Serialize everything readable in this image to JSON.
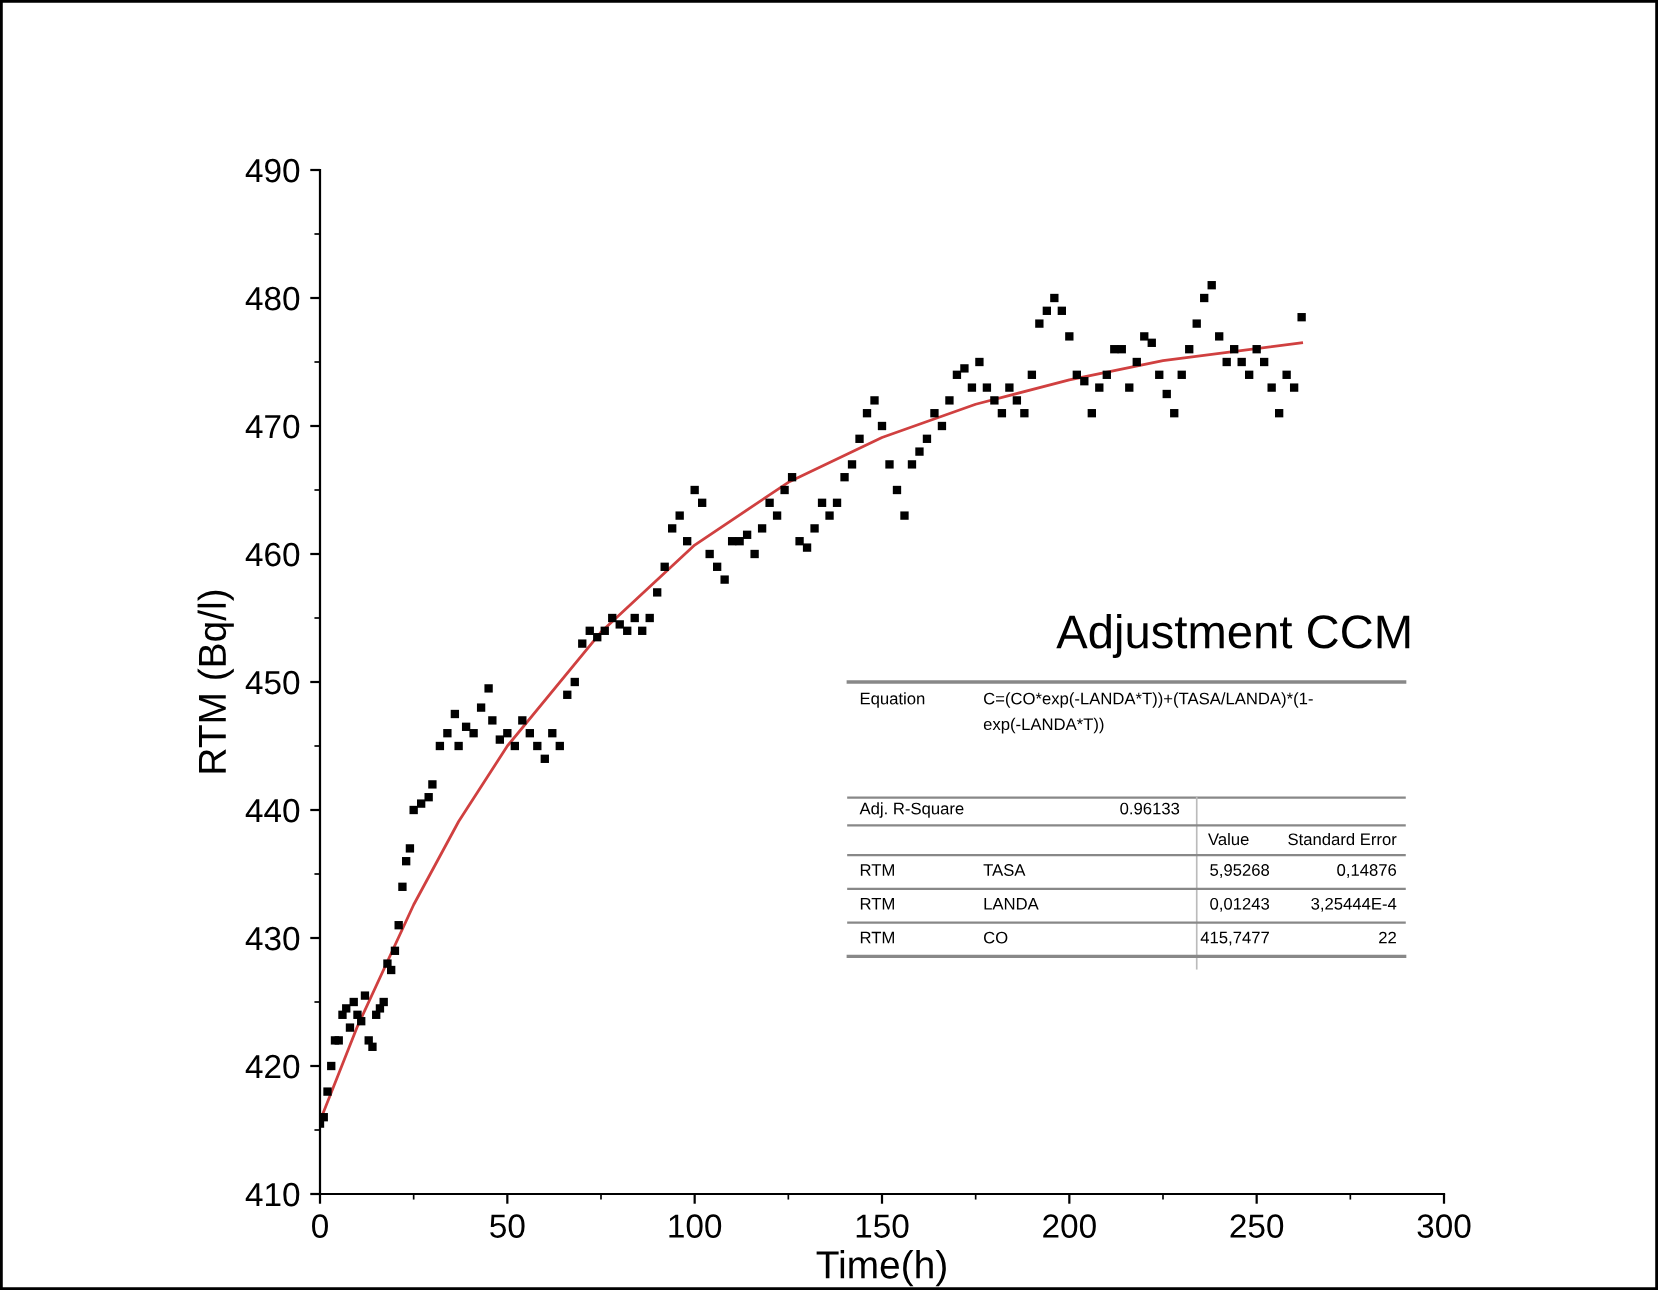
{
  "chart_data": {
    "type": "scatter",
    "xlabel": "Time(h)",
    "ylabel": "RTM (Bq/l)",
    "xlim": [
      0,
      300
    ],
    "ylim": [
      410,
      490
    ],
    "xticks": [
      0,
      50,
      100,
      150,
      200,
      250,
      300
    ],
    "yticks": [
      410,
      420,
      430,
      440,
      450,
      460,
      470,
      480,
      490
    ],
    "grid": false,
    "legend": false,
    "marker": "square",
    "series": [
      {
        "color": "#000000",
        "x": [
          0,
          1,
          2,
          3,
          4,
          5,
          6,
          7,
          8,
          9,
          10,
          11,
          12,
          13,
          14,
          15,
          16,
          17,
          18,
          19,
          20,
          21,
          22,
          23,
          24,
          25,
          27,
          29,
          30,
          32,
          34,
          36,
          37,
          39,
          41,
          43,
          45,
          46,
          48,
          50,
          52,
          54,
          56,
          58,
          60,
          62,
          64,
          66,
          68,
          70,
          72,
          74,
          76,
          78,
          80,
          82,
          84,
          86,
          88,
          90,
          92,
          94,
          96,
          98,
          100,
          102,
          104,
          106,
          108,
          110,
          112,
          114,
          116,
          118,
          120,
          122,
          124,
          126,
          128,
          130,
          132,
          134,
          136,
          138,
          140,
          142,
          144,
          146,
          148,
          150,
          152,
          154,
          156,
          158,
          160,
          162,
          164,
          166,
          168,
          170,
          172,
          174,
          176,
          178,
          180,
          182,
          184,
          186,
          188,
          190,
          192,
          194,
          196,
          198,
          200,
          202,
          204,
          206,
          208,
          210,
          212,
          214,
          216,
          218,
          220,
          222,
          224,
          226,
          228,
          230,
          232,
          234,
          236,
          238,
          240,
          242,
          244,
          246,
          248,
          250,
          252,
          254,
          256,
          258,
          260,
          262
        ],
        "values": [
          415.5,
          416,
          418,
          420,
          422,
          422,
          424,
          424.5,
          423,
          425,
          424,
          423.5,
          425.5,
          422,
          421.5,
          424,
          424.5,
          425,
          428,
          427.5,
          429,
          431,
          434,
          436,
          437,
          440,
          440.5,
          441,
          442,
          445,
          446,
          447.5,
          445,
          446.5,
          446,
          448,
          449.5,
          447,
          445.5,
          446,
          445,
          447,
          446,
          445,
          444,
          446,
          445,
          449,
          450,
          453,
          454,
          453.5,
          454,
          455,
          454.5,
          454,
          455,
          454,
          455,
          457,
          459,
          462,
          463,
          461,
          465,
          464,
          460,
          459,
          458,
          461,
          461,
          461.5,
          460,
          462,
          464,
          463,
          465,
          466,
          461,
          460.5,
          462,
          464,
          463,
          464,
          466,
          467,
          469,
          471,
          472,
          470,
          467,
          465,
          463,
          467,
          468,
          469,
          471,
          470,
          472,
          474,
          474.5,
          473,
          475,
          473,
          472,
          471,
          473,
          472,
          471,
          474,
          478,
          479,
          480,
          479,
          477,
          474,
          473.5,
          471,
          473,
          474,
          476,
          476,
          473,
          475,
          477,
          476.5,
          474,
          472.5,
          471,
          474,
          476,
          478,
          480,
          481,
          477,
          475,
          476,
          475,
          474,
          476,
          475,
          473,
          471,
          474,
          473,
          478.5
        ]
      },
      {
        "type": "line",
        "color": "#d04040",
        "marker": "none",
        "line_style": "solid",
        "x": [
          0,
          10,
          25,
          37,
          50,
          75,
          100,
          125,
          150,
          175,
          200,
          225,
          262
        ],
        "values": [
          415.7,
          423.1,
          432.6,
          439.1,
          445.0,
          453.9,
          460.7,
          465.6,
          469.1,
          471.7,
          473.6,
          475.1,
          476.5
        ]
      }
    ],
    "annotations": [
      "Adjustment CCM",
      "Equation",
      "C=(CO*exp(-LANDA*T))+(TASA/LANDA)*(1-",
      "exp(-LANDA*T))",
      "Adj. R-Square",
      "0.96133",
      "Value",
      "Standard Error",
      "RTM",
      "TASA",
      "5,95268",
      "0,14876",
      "RTM",
      "LANDA",
      "0,01243",
      "3,25444E-4",
      "RTM",
      "CO",
      "415,7477",
      "22"
    ]
  }
}
